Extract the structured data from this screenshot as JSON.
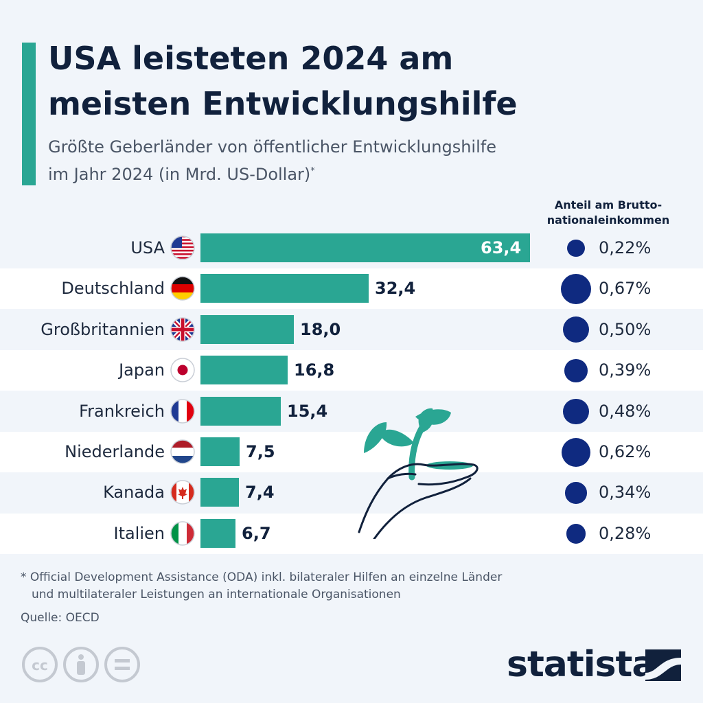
{
  "title_lines": [
    "USA leisteten 2024 am",
    "meisten Entwicklungshilfe"
  ],
  "subtitle_lines": [
    "Größte Geberländer von öffentlicher Entwicklungshilfe",
    "im Jahr 2024 (in Mrd. US-Dollar)"
  ],
  "subtitle_footnote_mark": "*",
  "column_header_lines": [
    "Anteil am Brutto-",
    "nationaleinkommen"
  ],
  "colors": {
    "accent": "#2aa693",
    "dot": "#0f2a80",
    "text": "#11213c"
  },
  "chart_data": {
    "type": "bar",
    "orientation": "horizontal",
    "categories": [
      "USA",
      "Deutschland",
      "Großbritannien",
      "Japan",
      "Frankreich",
      "Niederlande",
      "Kanada",
      "Italien"
    ],
    "values": [
      63.4,
      32.4,
      18.0,
      16.8,
      15.4,
      7.5,
      7.4,
      6.7
    ],
    "value_labels": [
      "63,4",
      "32,4",
      "18,0",
      "16,8",
      "15,4",
      "7,5",
      "7,4",
      "6,7"
    ],
    "gni_share": [
      0.22,
      0.67,
      0.5,
      0.39,
      0.48,
      0.62,
      0.34,
      0.28
    ],
    "gni_share_labels": [
      "0,22%",
      "0,67%",
      "0,50%",
      "0,39%",
      "0,48%",
      "0,62%",
      "0,34%",
      "0,28%"
    ],
    "flags": [
      "us-flag-icon",
      "germany-flag-icon",
      "uk-flag-icon",
      "japan-flag-icon",
      "france-flag-icon",
      "netherlands-flag-icon",
      "canada-flag-icon",
      "italy-flag-icon"
    ]
  },
  "footnote_lines": [
    "* Official Development Assistance (ODA) inkl. bilateraler Hilfen an einzelne Länder",
    "und multilateraler Leistungen an internationale Organisationen"
  ],
  "source": "Quelle: OECD",
  "brand": "statista",
  "license_icons": [
    "cc-icon",
    "attribution-icon",
    "no-derivatives-icon"
  ]
}
